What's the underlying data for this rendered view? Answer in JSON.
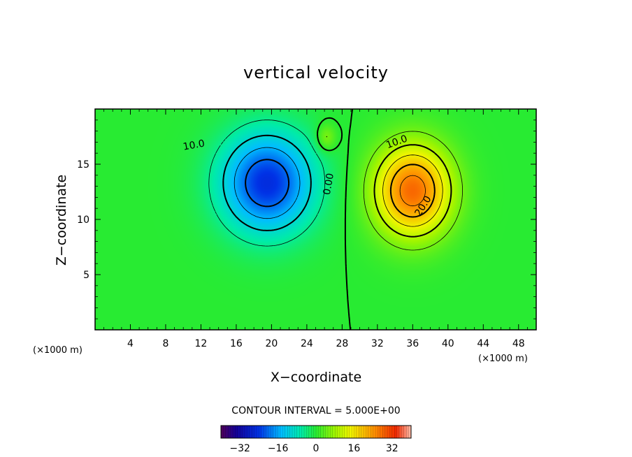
{
  "chart_data": {
    "type": "heatmap",
    "subtype": "filled-contour",
    "title": "vertical velocity",
    "xlabel": "X−coordinate",
    "ylabel": "Z−coordinate",
    "x_unit": "(×1000 m)",
    "x_unit_left": "(×1000 m)",
    "xlim": [
      0,
      50
    ],
    "ylim": [
      0,
      20
    ],
    "x_ticks": [
      4,
      8,
      12,
      16,
      20,
      24,
      28,
      32,
      36,
      40,
      44,
      48
    ],
    "y_ticks": [
      5,
      10,
      15
    ],
    "contour_interval_text": "CONTOUR INTERVAL = 5.000E+00",
    "contour_interval": 5.0,
    "contour_labels": [
      {
        "text": "10.0",
        "x": 11.2,
        "y": 16.7,
        "angle": -10
      },
      {
        "text": "10.0",
        "x": 34.2,
        "y": 17.0,
        "angle": -20
      },
      {
        "text": "20.0",
        "x": 37.2,
        "y": 11.2,
        "angle": -58
      },
      {
        "text": "0.00",
        "x": 26.5,
        "y": 13.2,
        "angle": -80
      }
    ],
    "colorbar": {
      "min": -40,
      "max": 40,
      "ticks": [
        -32,
        -16,
        0,
        16,
        32
      ],
      "tick_labels": [
        "−32",
        "−16",
        "0",
        "16",
        "32"
      ]
    },
    "features": [
      {
        "name": "downdraft",
        "x": 19.5,
        "z": 13.3,
        "peak": -25,
        "sx": 5.2,
        "sz": 4.5
      },
      {
        "name": "updraft",
        "x": 36.0,
        "z": 12.6,
        "peak": 28,
        "sx": 4.3,
        "sz": 4.1
      },
      {
        "name": "updraft-small",
        "x": 26.2,
        "z": 17.4,
        "peak": 7,
        "sx": 1.1,
        "sz": 1.2
      }
    ]
  }
}
